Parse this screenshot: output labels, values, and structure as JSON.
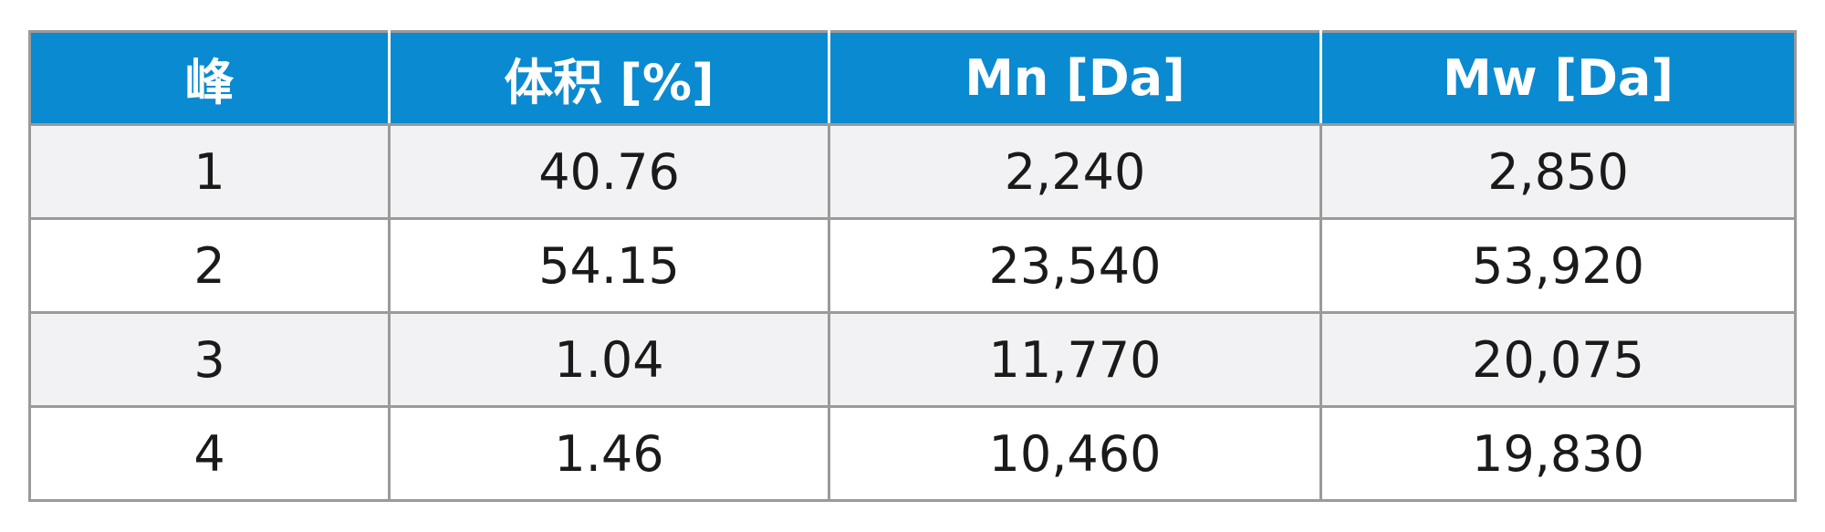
{
  "table": {
    "header": [
      "峰",
      "体积 [%]",
      "Mn [Da]",
      "Mw [Da]"
    ],
    "rows": [
      [
        "1",
        "40.76",
        "2,240",
        "2,850"
      ],
      [
        "2",
        "54.15",
        "23,540",
        "53,920"
      ],
      [
        "3",
        "1.04",
        "11,770",
        "20,075"
      ],
      [
        "4",
        "1.46",
        "10,460",
        "19,830"
      ]
    ]
  }
}
